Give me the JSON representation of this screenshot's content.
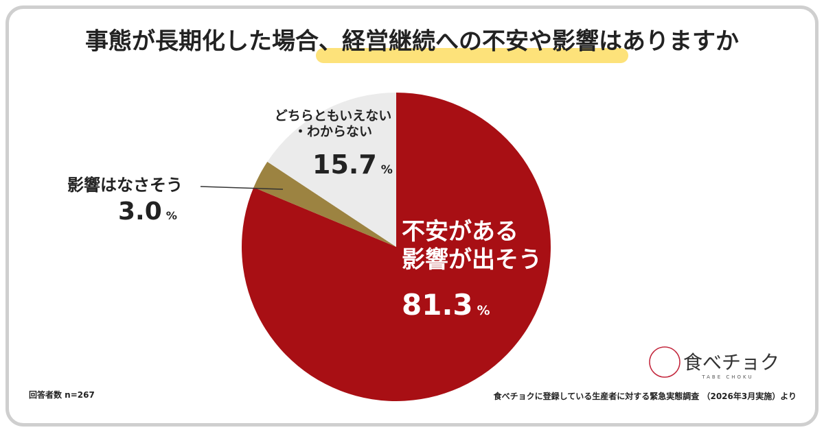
{
  "chart_data": {
    "type": "pie",
    "title": "事態が長期化した場合、経営継続への不安や影響はありますか",
    "categories": [
      "不安がある\n影響が出そう",
      "影響はなさそう",
      "どちらともいえない\n・わからない"
    ],
    "values": [
      81.3,
      3.0,
      15.7
    ],
    "value_labels": [
      "81.3",
      "3.0",
      "15.7"
    ],
    "unit": "%",
    "colors": [
      "#a80f14",
      "#9c8341",
      "#ebebeb"
    ],
    "sample_note": "回答者数 n=267",
    "source": "食べチョクに登録している生産者に対する緊急実態調査 （2026年3月実施）より"
  },
  "brand": {
    "name": "食べチョク",
    "romaji": "TABE CHOKU"
  }
}
